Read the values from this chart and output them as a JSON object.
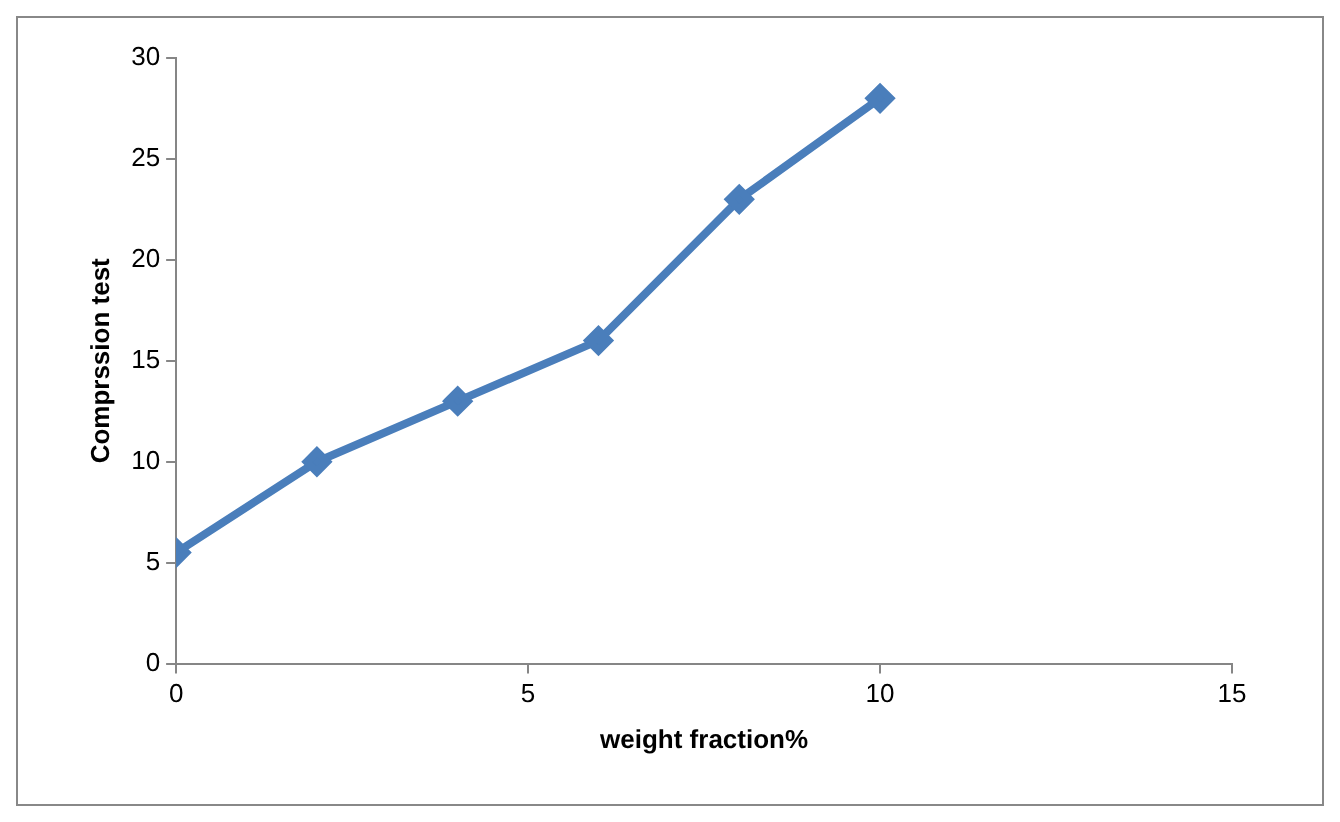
{
  "chart_data": {
    "type": "line",
    "xlabel": "weight fraction%",
    "ylabel": "Comprssion test",
    "x": [
      0,
      2,
      4,
      6,
      8,
      10
    ],
    "series": [
      {
        "color": "#4a7ebb",
        "values": [
          5.5,
          10,
          13,
          16,
          23,
          28
        ]
      }
    ],
    "xlim": [
      0,
      15
    ],
    "xticks": [
      0,
      5,
      10,
      15
    ],
    "ylim": [
      0,
      30
    ],
    "yticks": [
      0,
      5,
      10,
      15,
      20,
      25,
      30
    ],
    "marker": "diamond",
    "line_style": "solid",
    "legend": false
  }
}
